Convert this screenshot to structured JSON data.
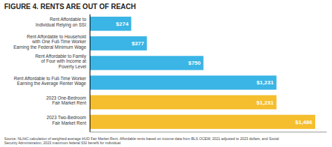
{
  "chart_data": {
    "type": "bar",
    "orientation": "horizontal",
    "title": "FIGURE 4. RENTS ARE OUT OF REACH",
    "categories": [
      "Rent Affordable to\nIndividual Relying on SSI",
      "Rent Affordable to Household\nwith One Full-Time Worker\nEarning the Federal Minimum Wage",
      "Rent Affordable to Family\nof Four with Income at\nPoverty Level",
      "Rent Affordable to Full-Time Worker\nEarning the Average Renter Wage",
      "2023 One-Bedroom\nFair Market Rent",
      "2023 Two-Bedroom\nFair Market Rent"
    ],
    "values": [
      274,
      377,
      750,
      1231,
      1231,
      1486
    ],
    "value_labels": [
      "$274",
      "$377",
      "$750",
      "$1,231",
      "$1,231",
      "$1,486"
    ],
    "colors": [
      "#3ab5e5",
      "#3ab5e5",
      "#3ab5e5",
      "#3ab5e5",
      "#f5be2e",
      "#f5be2e"
    ],
    "xlim": [
      0,
      1560
    ],
    "data_labels": true,
    "tick_labels": "y",
    "annotations": [
      "Source: NLIHC calculation of weighted-average HUD Fair Market Rent. Affordable rents based on income data from BLS OCEW, 2021 adjusted to 2023 dollars; and Social\nSecurity Administration, 2023 maximum federal SSI benefit for individual."
    ]
  }
}
